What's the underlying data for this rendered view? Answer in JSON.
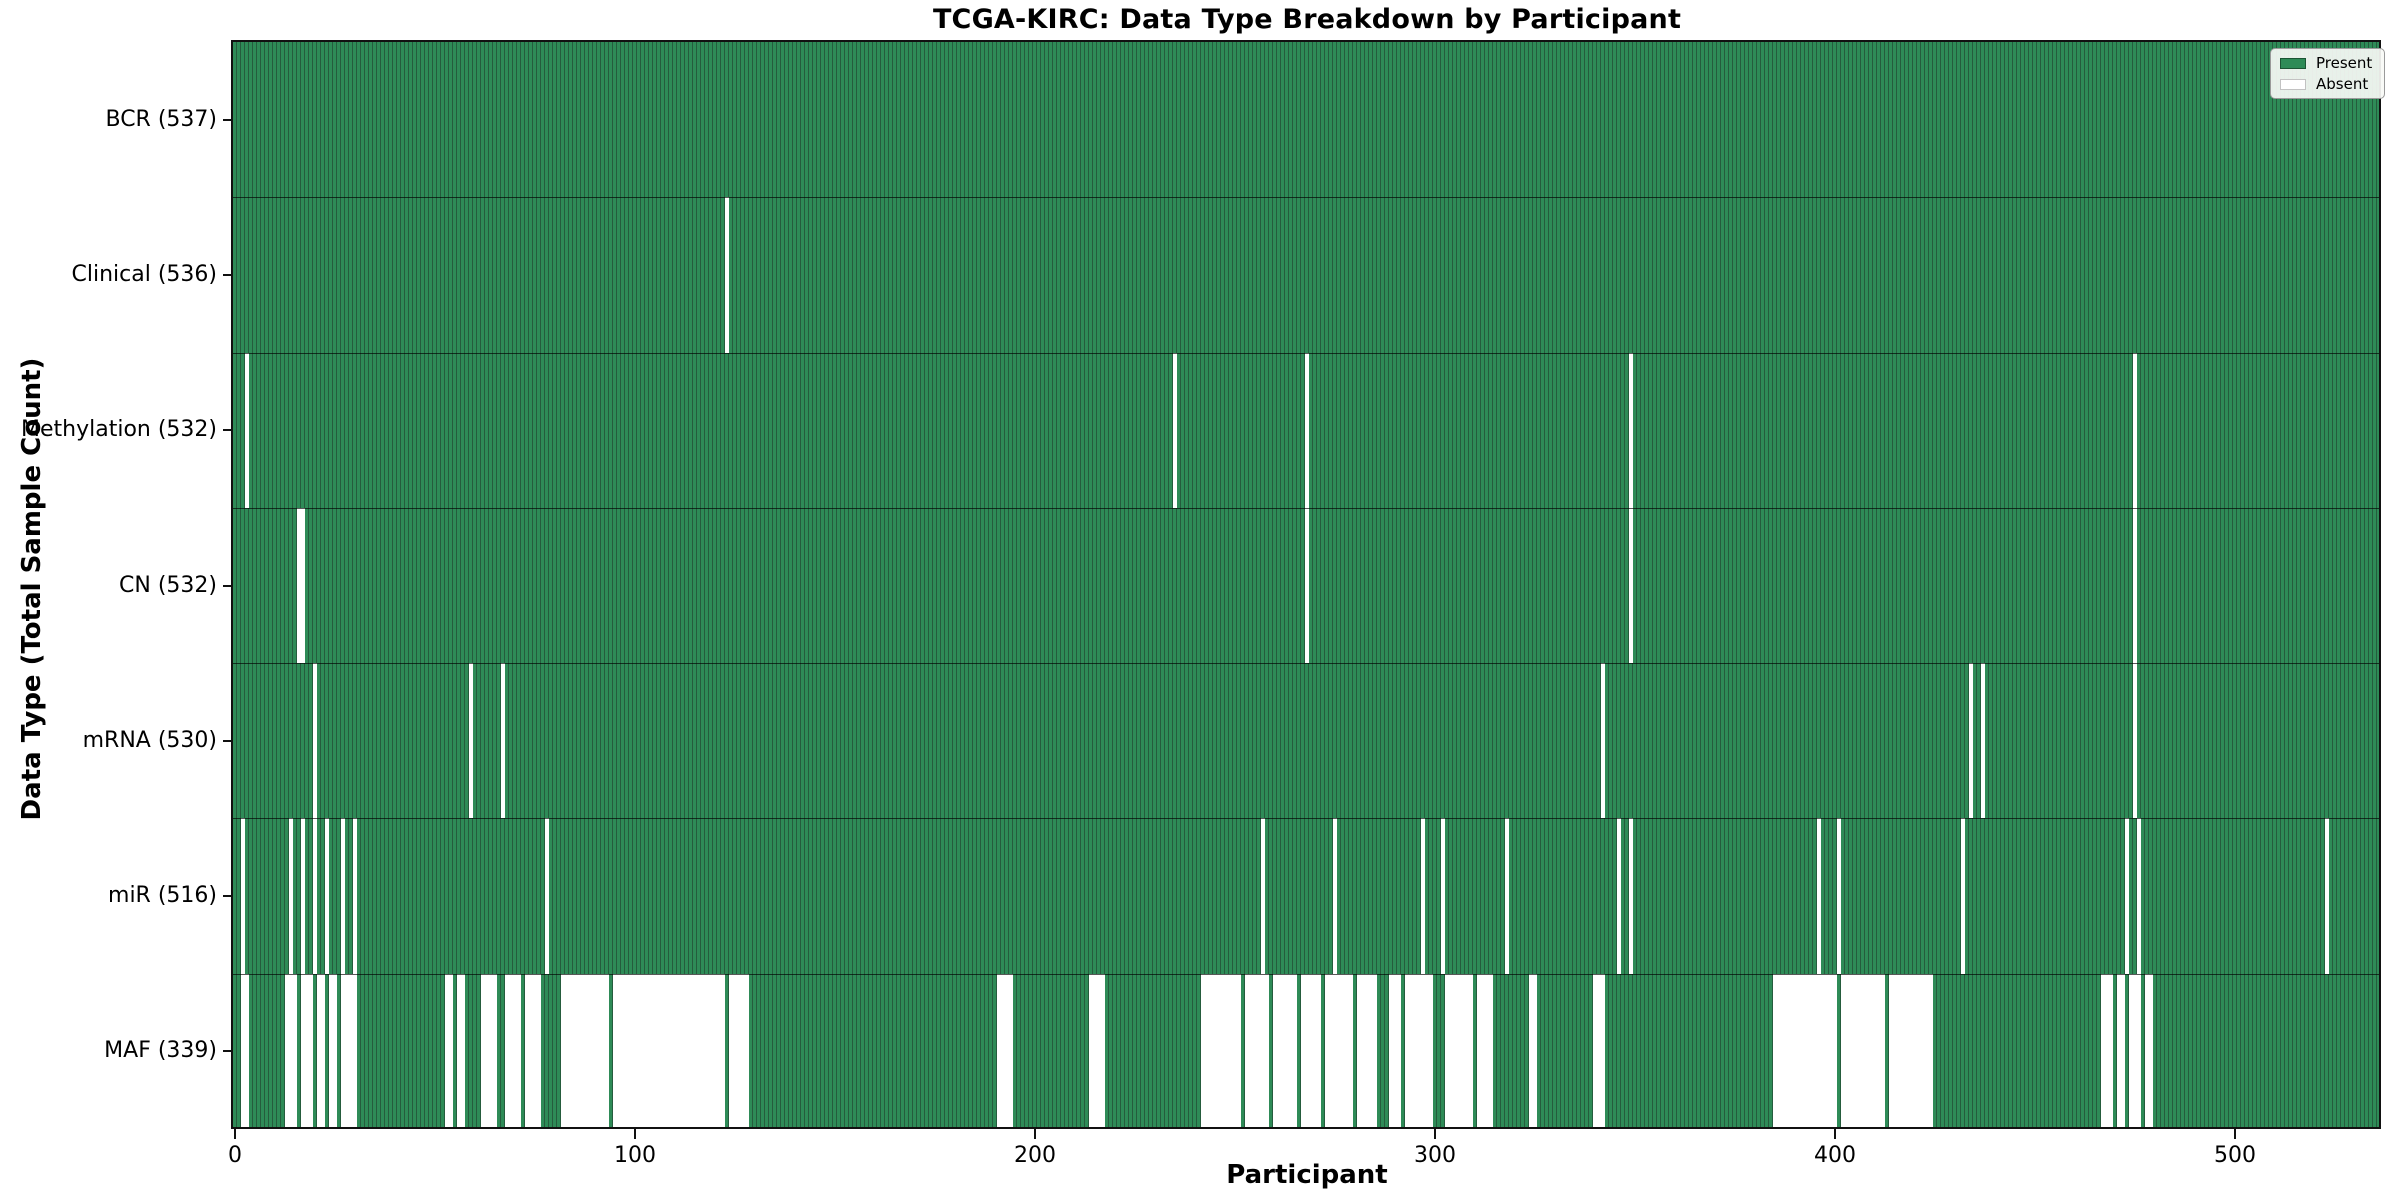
{
  "title": "TCGA-KIRC: Data Type Breakdown by Participant",
  "xlabel": "Participant",
  "ylabel": "Data Type (Total Sample Count)",
  "legend": {
    "present_label": "Present",
    "absent_label": "Absent"
  },
  "colors": {
    "present": "#2e8b57",
    "present_stripe": "#255c3d",
    "absent": "#ffffff",
    "axis": "#111111",
    "legend_bg": "#f5f8f3",
    "legend_border": "#9a9a9a"
  },
  "chart_data": {
    "type": "heatmap",
    "title": "TCGA-KIRC: Data Type Breakdown by Participant",
    "xlabel": "Participant",
    "ylabel": "Data Type (Total Sample Count)",
    "legend": [
      "Present",
      "Absent"
    ],
    "legend_position": "upper right",
    "x_range": [
      0,
      537
    ],
    "x_ticks": [
      0,
      100,
      200,
      300,
      400,
      500
    ],
    "n_participants": 537,
    "grid": false,
    "rows": [
      {
        "name": "BCR",
        "label": "BCR (537)",
        "present_count": 537,
        "absent": []
      },
      {
        "name": "Clinical",
        "label": "Clinical (536)",
        "present_count": 536,
        "absent": [
          123
        ]
      },
      {
        "name": "Methylation",
        "label": "Methylation (532)",
        "present_count": 532,
        "absent": [
          3,
          235,
          268,
          349,
          475
        ]
      },
      {
        "name": "CN",
        "label": "CN (532)",
        "present_count": 532,
        "absent": [
          16,
          17,
          268,
          349,
          475
        ]
      },
      {
        "name": "mRNA",
        "label": "mRNA (530)",
        "present_count": 530,
        "absent": [
          20,
          59,
          67,
          342,
          434,
          437,
          475
        ]
      },
      {
        "name": "miR",
        "label": "miR (516)",
        "present_count": 516,
        "absent": [
          2,
          14,
          17,
          20,
          23,
          27,
          30,
          78,
          257,
          275,
          297,
          302,
          318,
          346,
          349,
          396,
          401,
          432,
          473,
          476,
          523
        ]
      },
      {
        "name": "MAF",
        "label": "MAF (339)",
        "present_count": 339,
        "absent": [
          [
            2,
            3
          ],
          [
            13,
            15
          ],
          [
            17,
            19
          ],
          [
            21,
            22
          ],
          [
            24,
            25
          ],
          [
            27,
            30
          ],
          [
            53,
            54
          ],
          [
            56,
            57
          ],
          [
            62,
            65
          ],
          [
            68,
            71
          ],
          [
            73,
            76
          ],
          [
            82,
            93
          ],
          [
            95,
            122
          ],
          [
            124,
            128
          ],
          [
            191,
            194
          ],
          [
            214,
            217
          ],
          [
            242,
            251
          ],
          [
            253,
            258
          ],
          [
            260,
            265
          ],
          [
            267,
            271
          ],
          [
            273,
            279
          ],
          [
            281,
            285
          ],
          [
            289,
            291
          ],
          [
            293,
            299
          ],
          [
            303,
            309
          ],
          [
            311,
            314
          ],
          [
            324,
            325
          ],
          [
            340,
            342
          ],
          [
            385,
            400
          ],
          [
            402,
            412
          ],
          [
            414,
            424
          ],
          [
            467,
            469
          ],
          [
            471,
            472
          ],
          [
            474,
            476
          ],
          [
            478,
            479
          ]
        ]
      }
    ]
  }
}
